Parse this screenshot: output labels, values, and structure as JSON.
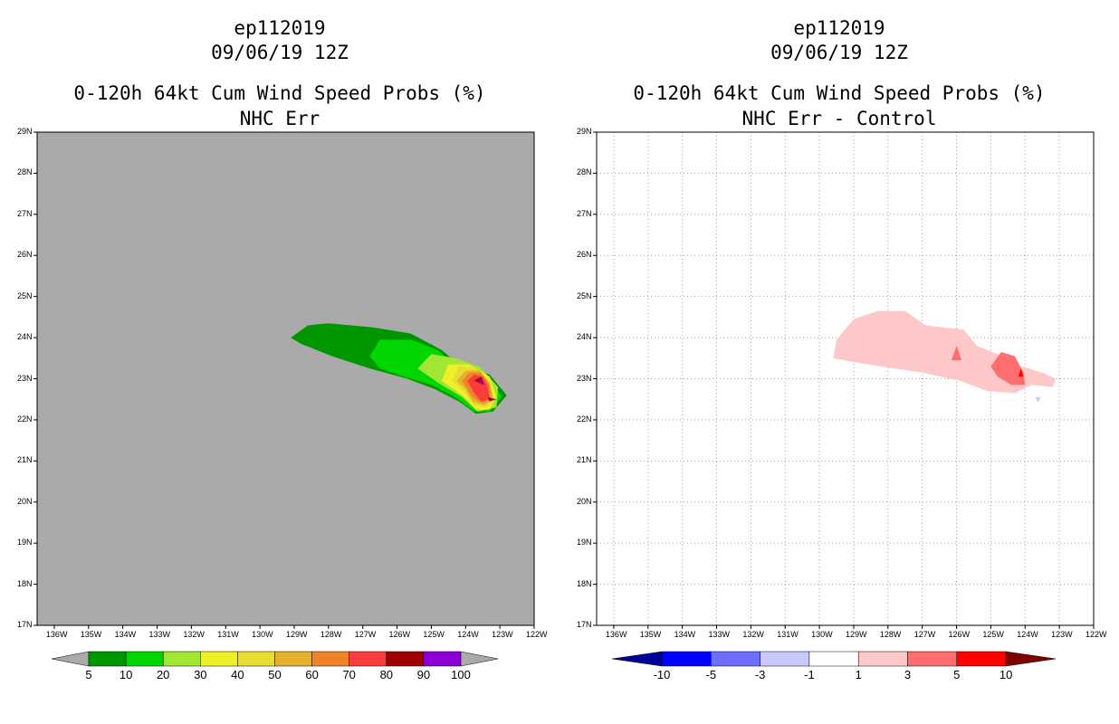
{
  "charts": [
    {
      "id": "left",
      "title_lines": [
        "ep112019",
        "09/06/19 12Z",
        "0-120h 64kt Cum Wind Speed Probs (%)",
        "NHC Err"
      ],
      "background": "#aaaaaa",
      "grid": false,
      "colorbar": {
        "labels": [
          "5",
          "10",
          "20",
          "30",
          "40",
          "50",
          "60",
          "70",
          "80",
          "90",
          "100"
        ],
        "colors": [
          "#009600",
          "#00d700",
          "#a0e632",
          "#f0f028",
          "#e6dc32",
          "#e6af2d",
          "#f08228",
          "#fa3c3c",
          "#a00000",
          "#8c00d7"
        ],
        "end_colors": [
          "#aaaaaa",
          "#aaaaaa"
        ]
      }
    },
    {
      "id": "right",
      "title_lines": [
        "ep112019",
        "09/06/19 12Z",
        "0-120h 64kt Cum Wind Speed Probs (%)",
        "NHC Err - Control"
      ],
      "background": "#ffffff",
      "grid": true,
      "colorbar": {
        "labels": [
          "-10",
          "-5",
          "-3",
          "-1",
          "1",
          "3",
          "5",
          "10"
        ],
        "colors": [
          "#0000ff",
          "#6e6eff",
          "#c8c8ff",
          "#ffffff",
          "#ffc8c8",
          "#ff6e6e",
          "#ff0000"
        ],
        "end_colors": [
          "#000096",
          "#7d0000"
        ]
      }
    }
  ],
  "chart_data": [
    {
      "type": "filled-contour-map",
      "title": "0-120h 64kt Cum Wind Speed Probs (%)",
      "subtitle": "NHC Err",
      "storm": "ep112019",
      "time": "09/06/19 12Z",
      "xlim": [
        -136.5,
        -122
      ],
      "ylim": [
        17,
        29
      ],
      "x_ticks": [
        "136W",
        "135W",
        "134W",
        "133W",
        "132W",
        "131W",
        "130W",
        "129W",
        "128W",
        "127W",
        "126W",
        "125W",
        "124W",
        "123W",
        "122W"
      ],
      "y_ticks": [
        "17N",
        "18N",
        "19N",
        "20N",
        "21N",
        "22N",
        "23N",
        "24N",
        "25N",
        "26N",
        "27N",
        "28N",
        "29N"
      ],
      "levels": [
        5,
        10,
        20,
        30,
        40,
        50,
        60,
        70,
        80,
        90,
        100
      ],
      "regions": [
        {
          "level": 5,
          "color": "#009600",
          "points": [
            [
              -129.1,
              24.0
            ],
            [
              -128.6,
              24.3
            ],
            [
              -128.0,
              24.35
            ],
            [
              -126.7,
              24.25
            ],
            [
              -125.6,
              24.1
            ],
            [
              -124.7,
              23.7
            ],
            [
              -124.2,
              23.35
            ],
            [
              -123.3,
              23.1
            ],
            [
              -122.8,
              22.6
            ],
            [
              -123.2,
              22.2
            ],
            [
              -123.7,
              22.15
            ],
            [
              -124.2,
              22.45
            ],
            [
              -124.9,
              22.75
            ],
            [
              -125.7,
              23.0
            ],
            [
              -126.8,
              23.25
            ],
            [
              -127.9,
              23.55
            ],
            [
              -128.8,
              23.85
            ]
          ]
        },
        {
          "level": 10,
          "color": "#00d700",
          "points": [
            [
              -126.8,
              23.55
            ],
            [
              -126.5,
              23.95
            ],
            [
              -125.6,
              23.95
            ],
            [
              -124.8,
              23.7
            ],
            [
              -124.3,
              23.3
            ],
            [
              -123.3,
              23.05
            ],
            [
              -122.95,
              22.55
            ],
            [
              -123.3,
              22.2
            ],
            [
              -123.75,
              22.2
            ],
            [
              -124.3,
              22.55
            ],
            [
              -125.0,
              22.85
            ],
            [
              -125.8,
              23.05
            ],
            [
              -126.5,
              23.25
            ]
          ]
        },
        {
          "level": 20,
          "color": "#a0e632",
          "points": [
            [
              -125.4,
              23.25
            ],
            [
              -125.0,
              23.6
            ],
            [
              -124.3,
              23.5
            ],
            [
              -123.6,
              23.3
            ],
            [
              -123.05,
              22.8
            ],
            [
              -123.1,
              22.3
            ],
            [
              -123.65,
              22.2
            ],
            [
              -124.1,
              22.55
            ],
            [
              -124.8,
              22.9
            ]
          ]
        },
        {
          "level": 30,
          "color": "#f0f028",
          "points": [
            [
              -124.7,
              22.95
            ],
            [
              -124.5,
              23.35
            ],
            [
              -123.9,
              23.35
            ],
            [
              -123.3,
              23.05
            ],
            [
              -123.1,
              22.55
            ],
            [
              -123.3,
              22.25
            ],
            [
              -123.7,
              22.25
            ],
            [
              -124.1,
              22.6
            ]
          ]
        },
        {
          "level": 40,
          "color": "#e6dc32",
          "points": [
            [
              -124.4,
              22.95
            ],
            [
              -124.2,
              23.3
            ],
            [
              -123.7,
              23.25
            ],
            [
              -123.3,
              22.95
            ],
            [
              -123.15,
              22.5
            ],
            [
              -123.4,
              22.3
            ],
            [
              -123.75,
              22.35
            ],
            [
              -124.05,
              22.7
            ]
          ]
        },
        {
          "level": 50,
          "color": "#e6af2d",
          "points": [
            [
              -124.25,
              22.95
            ],
            [
              -124.0,
              23.2
            ],
            [
              -123.6,
              23.2
            ],
            [
              -123.3,
              22.9
            ],
            [
              -123.2,
              22.5
            ],
            [
              -123.45,
              22.35
            ],
            [
              -123.8,
              22.45
            ],
            [
              -124.0,
              22.75
            ]
          ]
        },
        {
          "level": 60,
          "color": "#f08228",
          "points": [
            [
              -124.1,
              22.95
            ],
            [
              -123.9,
              23.15
            ],
            [
              -123.55,
              23.15
            ],
            [
              -123.3,
              22.85
            ],
            [
              -123.25,
              22.5
            ],
            [
              -123.5,
              22.4
            ],
            [
              -123.8,
              22.55
            ]
          ]
        },
        {
          "level": 70,
          "color": "#fa3c3c",
          "points": [
            [
              -123.95,
              22.95
            ],
            [
              -123.75,
              23.1
            ],
            [
              -123.5,
              23.05
            ],
            [
              -123.35,
              22.8
            ],
            [
              -123.3,
              22.5
            ],
            [
              -123.55,
              22.45
            ],
            [
              -123.75,
              22.65
            ]
          ]
        },
        {
          "level": 80,
          "color": "#a00000",
          "points": [
            [
              -123.75,
              22.95
            ],
            [
              -123.55,
              23.05
            ],
            [
              -123.45,
              22.85
            ]
          ]
        },
        {
          "level": 90,
          "color": "#8c00d7",
          "points": [
            [
              -123.62,
              22.98
            ],
            [
              -123.5,
              22.98
            ],
            [
              -123.55,
              22.85
            ]
          ]
        },
        {
          "level": 80,
          "color": "#a00000",
          "points": [
            [
              -123.35,
              22.55
            ],
            [
              -123.1,
              22.5
            ],
            [
              -123.3,
              22.45
            ]
          ]
        },
        {
          "level": 90,
          "color": "#8c00d7",
          "points": [
            [
              -123.28,
              22.53
            ],
            [
              -123.15,
              22.5
            ],
            [
              -123.25,
              22.47
            ]
          ]
        }
      ]
    },
    {
      "type": "filled-contour-map",
      "title": "0-120h 64kt Cum Wind Speed Probs (%)",
      "subtitle": "NHC Err - Control",
      "storm": "ep112019",
      "time": "09/06/19 12Z",
      "xlim": [
        -136.5,
        -122
      ],
      "ylim": [
        17,
        29
      ],
      "x_ticks": [
        "136W",
        "135W",
        "134W",
        "133W",
        "132W",
        "131W",
        "130W",
        "129W",
        "128W",
        "127W",
        "126W",
        "125W",
        "124W",
        "123W",
        "122W"
      ],
      "y_ticks": [
        "17N",
        "18N",
        "19N",
        "20N",
        "21N",
        "22N",
        "23N",
        "24N",
        "25N",
        "26N",
        "27N",
        "28N",
        "29N"
      ],
      "levels": [
        -10,
        -5,
        -3,
        -1,
        1,
        3,
        5,
        10
      ],
      "regions": [
        {
          "level": 1,
          "color": "#ffc8c8",
          "points": [
            [
              -129.6,
              23.5
            ],
            [
              -129.5,
              23.95
            ],
            [
              -129.0,
              24.45
            ],
            [
              -128.3,
              24.65
            ],
            [
              -127.5,
              24.65
            ],
            [
              -126.9,
              24.3
            ],
            [
              -126.4,
              24.25
            ],
            [
              -125.8,
              24.2
            ],
            [
              -125.4,
              23.8
            ],
            [
              -124.8,
              23.6
            ],
            [
              -124.3,
              23.35
            ],
            [
              -123.5,
              23.15
            ],
            [
              -123.1,
              23.0
            ],
            [
              -123.2,
              22.8
            ],
            [
              -123.8,
              22.85
            ],
            [
              -124.3,
              22.65
            ],
            [
              -125.1,
              22.7
            ],
            [
              -125.9,
              22.95
            ],
            [
              -127.0,
              23.15
            ],
            [
              -128.2,
              23.3
            ],
            [
              -129.3,
              23.45
            ]
          ]
        },
        {
          "level": 3,
          "color": "#ff6e6e",
          "points": [
            [
              -125.0,
              23.3
            ],
            [
              -124.7,
              23.65
            ],
            [
              -124.3,
              23.55
            ],
            [
              -124.05,
              23.15
            ],
            [
              -124.0,
              22.85
            ],
            [
              -124.4,
              22.85
            ],
            [
              -124.8,
              23.05
            ]
          ]
        },
        {
          "level": 3,
          "color": "#ff6e6e",
          "points": [
            [
              -126.15,
              23.45
            ],
            [
              -126.0,
              23.8
            ],
            [
              -125.85,
              23.45
            ]
          ]
        },
        {
          "level": 5,
          "color": "#ff0000",
          "points": [
            [
              -124.2,
              23.05
            ],
            [
              -124.12,
              23.25
            ],
            [
              -124.05,
              23.05
            ]
          ]
        },
        {
          "level": -1,
          "color": "#c8c8ff",
          "points": [
            [
              -123.7,
              22.55
            ],
            [
              -123.55,
              22.55
            ],
            [
              -123.62,
              22.42
            ]
          ]
        }
      ]
    }
  ]
}
